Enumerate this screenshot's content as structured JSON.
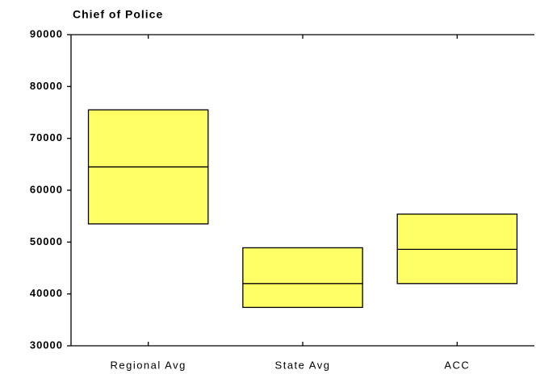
{
  "chart_data": {
    "type": "range",
    "title": "Chief of Police",
    "categories": [
      "Regional Avg",
      "State Avg",
      "ACC"
    ],
    "high": [
      75500,
      48900,
      55400
    ],
    "median": [
      64500,
      42000,
      48600
    ],
    "low": [
      53500,
      37400,
      42000
    ],
    "color": "#ffff66",
    "ylim": [
      30000,
      90000
    ],
    "yticks": [
      30000,
      40000,
      50000,
      60000,
      70000,
      80000,
      90000
    ]
  }
}
